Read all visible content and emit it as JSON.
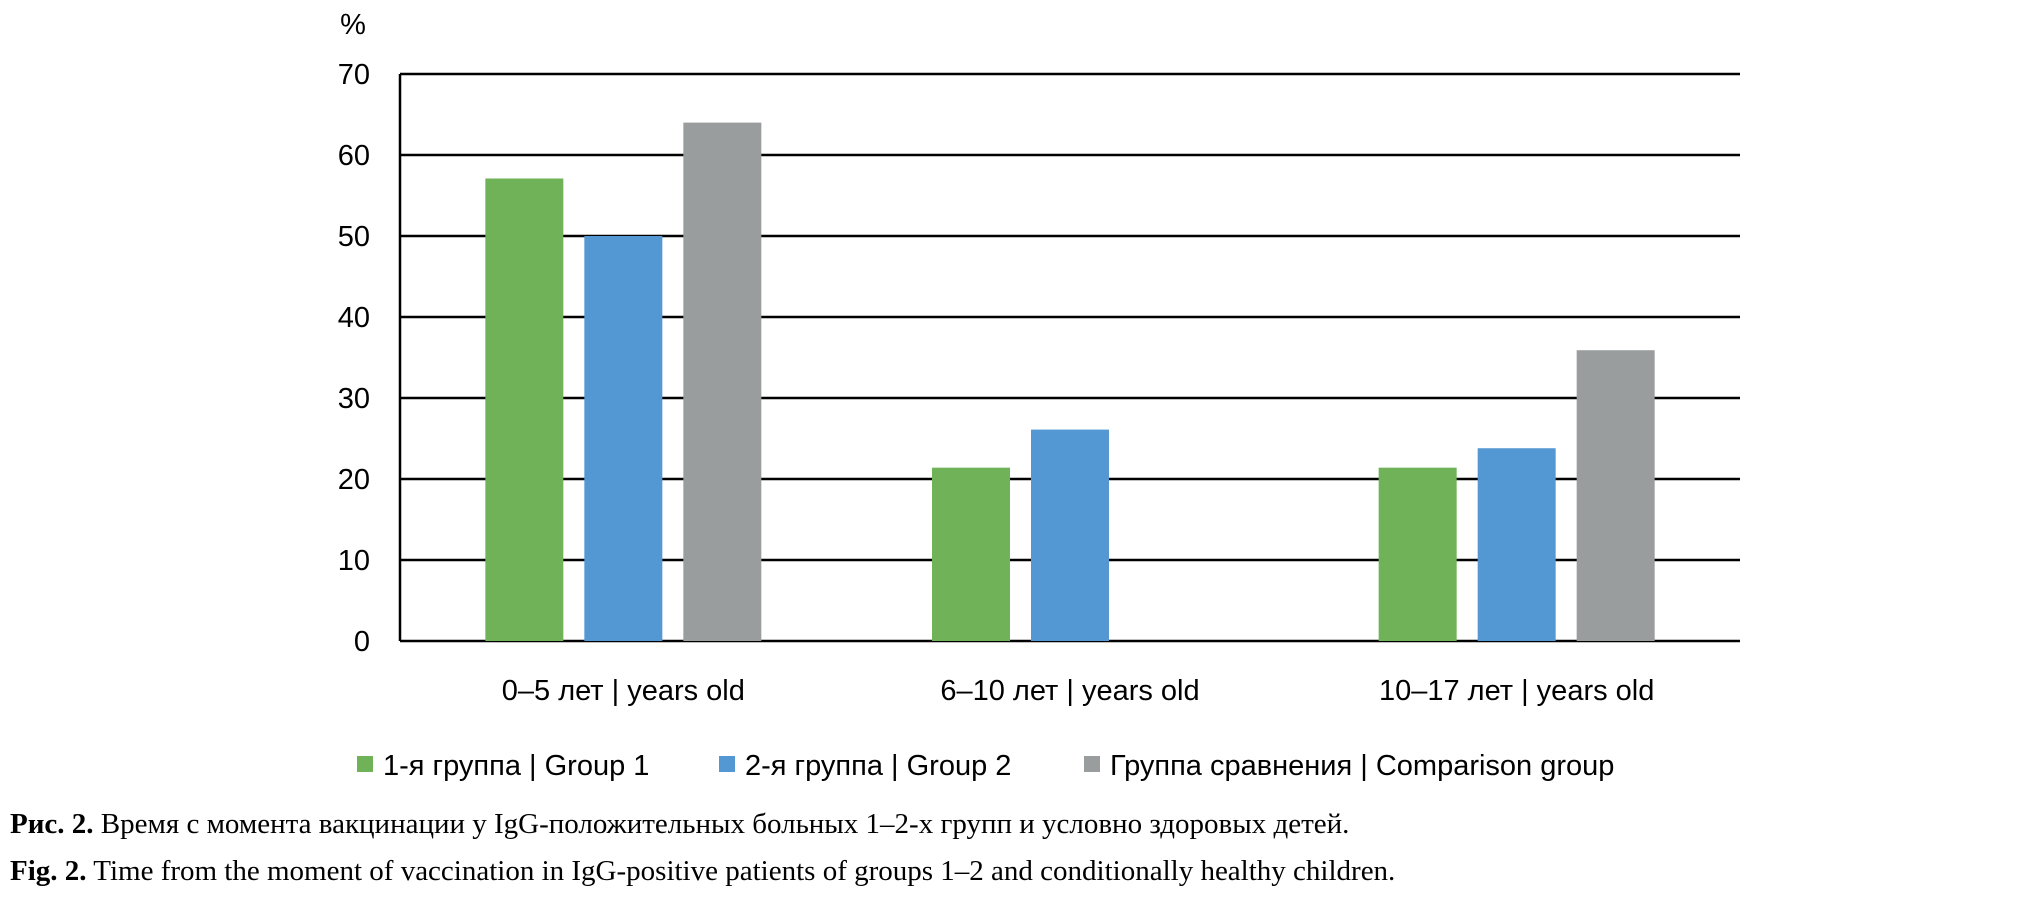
{
  "chart_data": {
    "type": "bar",
    "ylabel": "%",
    "ylim": [
      0,
      70
    ],
    "yticks": [
      0,
      10,
      20,
      30,
      40,
      50,
      60,
      70
    ],
    "ytick_labels": [
      "0",
      "10",
      "20",
      "30",
      "40",
      "50",
      "60",
      "70"
    ],
    "grid": true,
    "legend_position": "bottom",
    "categories": [
      "0–5 лет | years old",
      "6–10 лет | years old",
      "10–17 лет | years old"
    ],
    "series": [
      {
        "name": "1-я группа | Group 1",
        "color": "#70b257",
        "values": [
          57.1,
          21.4,
          21.4
        ]
      },
      {
        "name": "2-я группа | Group 2",
        "color": "#5498d3",
        "values": [
          50,
          26.1,
          23.8
        ]
      },
      {
        "name": "Группа сравнения | Comparison group",
        "color": "#9a9d9d",
        "values": [
          64.0,
          0,
          35.9
        ]
      }
    ]
  },
  "caption": {
    "ru_label": "Рис. 2.",
    "ru_text": " Время с момента вакцинации у IgG-положительных больных 1–2-х групп и условно здоровых детей.",
    "en_label": "Fig. 2.",
    "en_text": " Time from the moment of vaccination in IgG-positive patients of groups 1–2 and conditionally healthy children."
  }
}
